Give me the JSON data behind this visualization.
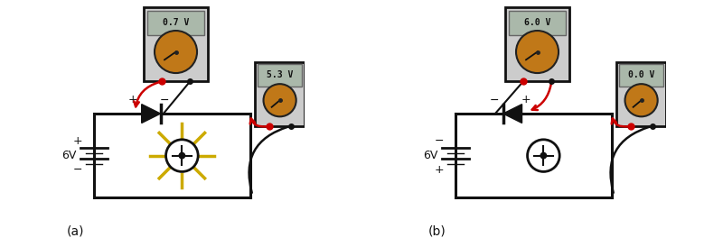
{
  "fig_width": 8.0,
  "fig_height": 2.74,
  "dpi": 100,
  "bg_color": "#ffffff",
  "panel_a": {
    "label": "(a)",
    "meter1_display": "0.7 V",
    "meter2_display": "5.3 V",
    "battery_plus_top": true,
    "diode_forward": true,
    "led_glowing": true
  },
  "panel_b": {
    "label": "(b)",
    "meter1_display": "6.0 V",
    "meter2_display": "0.0 V",
    "battery_plus_top": false,
    "diode_forward": false,
    "led_glowing": false
  },
  "colors": {
    "wire": "#111111",
    "red_wire": "#cc0000",
    "meter_body": "#cccccc",
    "meter_screen": "#aab8aa",
    "dial": "#c07818",
    "probe_red": "#cc0000",
    "probe_black": "#111111",
    "led_rays": "#ccaa00",
    "circuit_line": "#111111"
  }
}
